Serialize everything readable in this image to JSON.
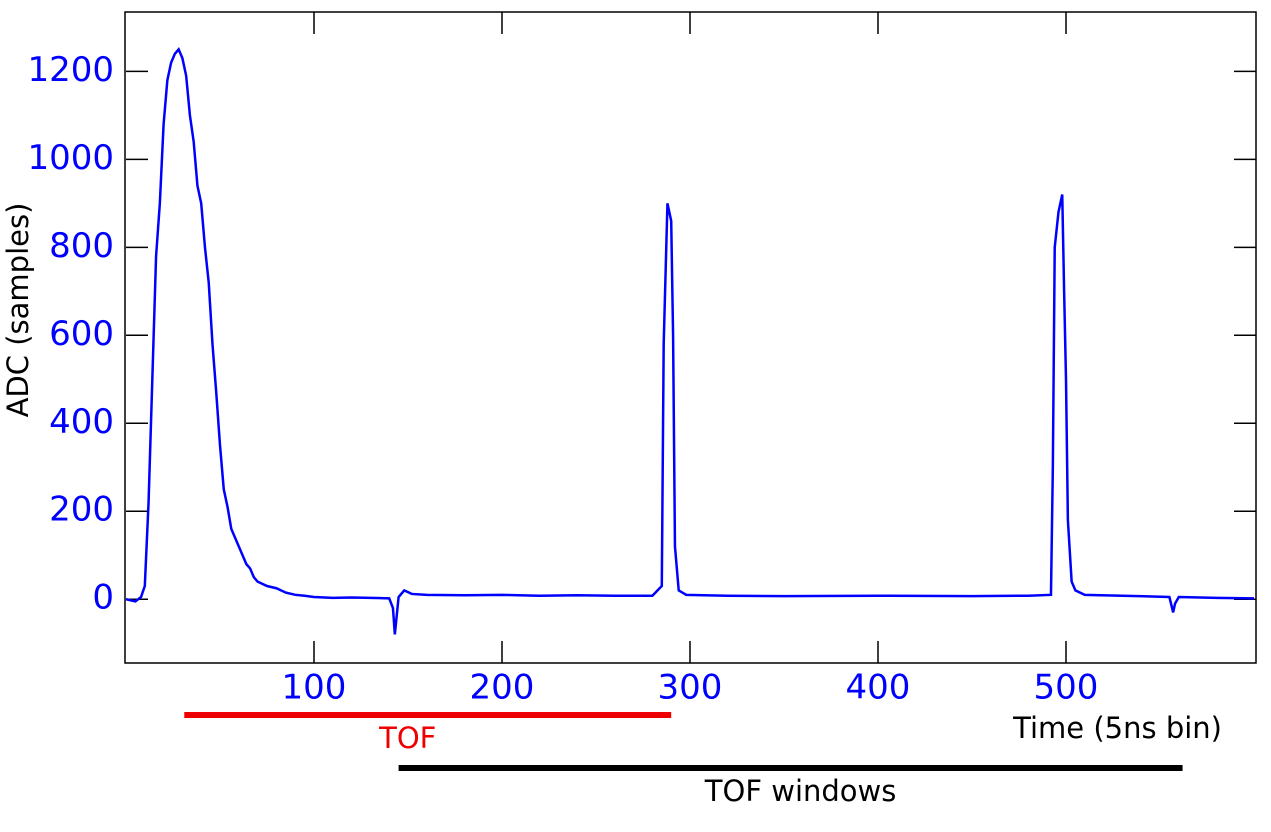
{
  "chart_data": {
    "type": "line",
    "x_label": "Time (5ns bin)",
    "y_label": "ADC (samples)",
    "xlim": [
      0,
      600
    ],
    "ylim": [
      -145,
      1335
    ],
    "xticks": [
      100,
      200,
      300,
      400,
      500
    ],
    "yticks": [
      0,
      200,
      400,
      600,
      800,
      1000,
      1200
    ],
    "series": [
      {
        "color": "#0000ff",
        "x": [
          0,
          5,
          8,
          10,
          12,
          14,
          16,
          18,
          20,
          22,
          24,
          26,
          28,
          30,
          32,
          34,
          36,
          38,
          40,
          42,
          44,
          46,
          48,
          50,
          52,
          54,
          56,
          58,
          60,
          62,
          64,
          66,
          68,
          70,
          75,
          80,
          85,
          90,
          95,
          100,
          110,
          120,
          130,
          140,
          142,
          143,
          145,
          148,
          152,
          160,
          180,
          200,
          220,
          240,
          260,
          280,
          285,
          286,
          288,
          290,
          291,
          292,
          294,
          298,
          320,
          350,
          400,
          450,
          480,
          492,
          493,
          494,
          496,
          498,
          499,
          500,
          501,
          503,
          505,
          510,
          530,
          555,
          557,
          558,
          560,
          580,
          600
        ],
        "values": [
          0,
          -5,
          5,
          30,
          220,
          500,
          780,
          900,
          1080,
          1180,
          1220,
          1240,
          1250,
          1230,
          1190,
          1100,
          1040,
          940,
          900,
          800,
          720,
          580,
          470,
          350,
          250,
          210,
          160,
          140,
          120,
          100,
          80,
          70,
          50,
          40,
          30,
          25,
          15,
          10,
          8,
          5,
          3,
          4,
          3,
          2,
          -20,
          -80,
          5,
          20,
          12,
          10,
          9,
          10,
          8,
          9,
          8,
          8,
          30,
          580,
          900,
          860,
          600,
          120,
          20,
          10,
          8,
          7,
          8,
          7,
          8,
          10,
          300,
          800,
          880,
          920,
          700,
          500,
          180,
          40,
          20,
          10,
          8,
          5,
          -30,
          -10,
          5,
          3,
          2
        ]
      }
    ],
    "annotations": [
      {
        "text": "TOF",
        "color": "#ee0000",
        "x": [
          31,
          290
        ]
      },
      {
        "text": "TOF windows",
        "color": "#000000",
        "x": [
          145,
          562
        ]
      }
    ]
  }
}
